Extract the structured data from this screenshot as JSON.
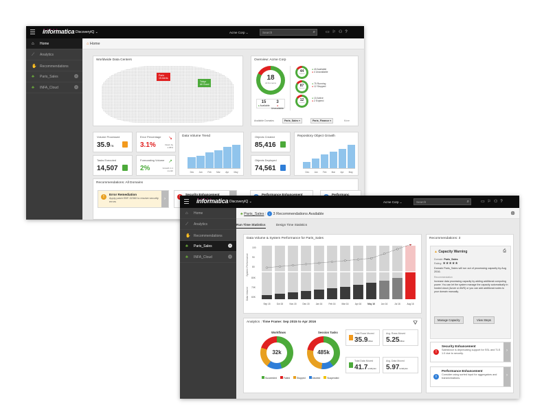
{
  "w1": {
    "topbar": {
      "brand": "informatica",
      "product": "DiscoveryIQ",
      "org": "Acme Corp",
      "search_placeholder": "Search"
    },
    "sidebar": [
      {
        "label": "Home",
        "icon": "home-icon",
        "active": true
      },
      {
        "label": "Analytics",
        "icon": "chart-icon"
      },
      {
        "label": "Recommendations",
        "icon": "hand-icon"
      },
      {
        "label": "Paris_Sales",
        "icon": "hierarchy-icon",
        "close": true
      },
      {
        "label": "INFA_Cloud",
        "icon": "hierarchy-icon",
        "close": true
      }
    ],
    "breadcrumb": "Home",
    "map": {
      "title": "Worldwide Data Centers",
      "pin1": "Paris",
      "pin1_sub": "15 Alerts",
      "pin2": "Tokyo",
      "pin2_sub": "All Good"
    },
    "overview": {
      "title": "Overview: Acme Corp",
      "big_value": "18",
      "big_label": "All Domains",
      "available": "15",
      "available_label": "Available",
      "unavailable": "3",
      "unavailable_label": "Unavailable",
      "rings": [
        {
          "value": "44",
          "label": "Products",
          "l1": "40 Available",
          "l2": "4 Unavailable"
        },
        {
          "value": "87",
          "label": "Services",
          "l1": "75 Running",
          "l2": "12 Stopped"
        },
        {
          "value": "12",
          "label": "Licenses",
          "l1": "10 Active",
          "l2": "2 Expired"
        }
      ],
      "domains_label": "Available Domains",
      "d1": "Paris_Sales",
      "d2": "Paris_Finance",
      "more": "More"
    },
    "kpis": {
      "volume_label": "Volume Processed",
      "volume_value": "35.9",
      "volume_unit": "TB",
      "errors_label": "Error Percentage",
      "errors_value": "3.1%",
      "errors_note": "Down by 1.05%",
      "tasks_label": "Tasks Executed",
      "tasks_value": "14,507",
      "growth_label": "Forecasting Volume",
      "growth_value": "2%",
      "growth_note": "Growth in 1 month"
    },
    "trend": {
      "title": "Data Volume Trend",
      "values": [
        1.5,
        1.7,
        2.2,
        2.4,
        2.9,
        3.2
      ],
      "months": [
        "Dec",
        "Jan",
        "Feb",
        "Mar",
        "Apr",
        "May"
      ]
    },
    "objects": {
      "created_label": "Objects Created",
      "created_value": "85,416",
      "deployed_label": "Objects Deployed",
      "deployed_value": "74,561"
    },
    "repo": {
      "title": "Repository Object Growth",
      "values": [
        20,
        30,
        42,
        50,
        60,
        72
      ],
      "months": [
        "Dec",
        "Jan",
        "Feb",
        "Mar",
        "Apr",
        "May"
      ]
    },
    "recs": {
      "title": "Recommendations: All Domains",
      "r1_title": "Error Remediation",
      "r1_desc": "Apply patch EBF-32360 to resolve security errors",
      "r2_title": "Security Enhancement",
      "r3_title": "Performance Enhancement",
      "r4_title": "Performanc"
    }
  },
  "w2": {
    "topbar": {
      "brand": "informatica",
      "product": "DiscoveryIQ",
      "org": "Acme Corp",
      "search_placeholder": "Search"
    },
    "sidebar": [
      {
        "label": "Home",
        "icon": "home-icon"
      },
      {
        "label": "Analytics",
        "icon": "chart-icon"
      },
      {
        "label": "Recommendations",
        "icon": "hand-icon"
      },
      {
        "label": "Paris_Sales",
        "icon": "hierarchy-icon",
        "active": true,
        "close": true
      },
      {
        "label": "INFA_Cloud",
        "icon": "hierarchy-icon",
        "close": true
      }
    ],
    "breadcrumb": "Paris_Sales",
    "rec_available": "3 Recommendations Available",
    "tabs": {
      "t1": "Run Time Statistics",
      "t2": "Design Time Statistics"
    },
    "chart": {
      "title": "Data Volume & System Performance for Paris_Sales",
      "ylabel_top": "System Performance",
      "ylabel_bottom": "Data Volume",
      "yticks_top": [
        "100",
        "90",
        "80"
      ],
      "yticks_bottom": [
        "80K",
        "70K",
        "60K"
      ],
      "months": [
        "Sep 15",
        "Oct 15",
        "Nov 15",
        "Dec 15",
        "Jan 16",
        "Feb 16",
        "Mar 16",
        "Apr 16",
        "May 16",
        "Jun 16",
        "Jul 16",
        "Aug 16"
      ]
    },
    "analytics": {
      "label": "Analytics",
      "timeframe": "Time Frame: Sep 2015 to Apr 2016",
      "workflows_title": "Workflows",
      "workflows_value": "32k",
      "sessions_title": "Session Tasks",
      "sessions_value": "485k",
      "legend": [
        "Succeeded",
        "Failed",
        "Stopped",
        "Aborted",
        "Suspended"
      ],
      "rows_label": "Total Rows Moved",
      "rows_value": "35.9",
      "rows_unit": "billion",
      "avg_rows_label": "Avg. Rows Moved",
      "avg_rows_value": "5.25",
      "avg_rows_unit": "billion",
      "data_label": "Total Data Moved",
      "data_value": "41.7",
      "data_unit": "terabytes",
      "avg_data_label": "Avg. Data Moved",
      "avg_data_value": "5.97",
      "avg_data_unit": "terabytes"
    },
    "recs": {
      "title": "Recommendations: 3",
      "c_title": "Capacity Warning",
      "c_domain_label": "Domain",
      "c_domain": "Paris_Sales",
      "c_rating_label": "Rating",
      "c_rating": "★★★★★",
      "c_text": "Domain Paris_Sales will run out of processing capacity by Aug 2016.",
      "c_rec_label": "Recommendation",
      "c_rec": "Increase data processing capacity by adding additional computing power. You can let the system manage the capacity automatically in hosted cloud (Azure or AWS) or you can add additional nodes to your domain manually.",
      "btn1": "Manage Capacity",
      "btn2": "View Steps",
      "s_title": "Security Enhancement",
      "s_desc": "Salesforce is deprecating support for SSL and TLS 1.0 due to security.",
      "p_title": "Performance Enhancement",
      "p_desc": "Consider using sorted input for aggregators and transformations."
    }
  }
}
